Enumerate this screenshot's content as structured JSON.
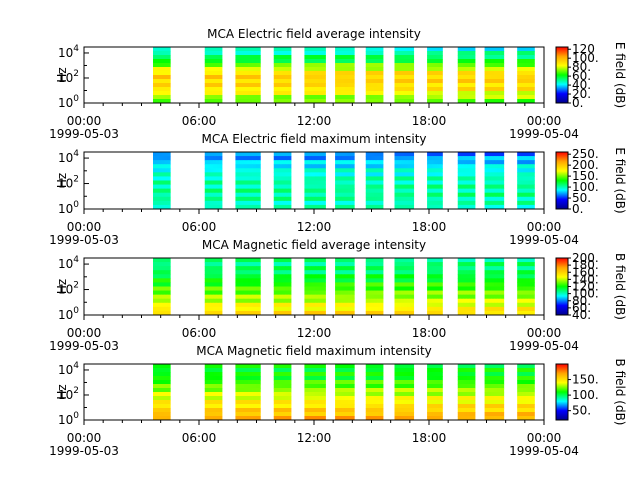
{
  "time_axis": {
    "range": [
      "1999-05-03T00:00",
      "1999-05-04T00:00"
    ],
    "ticks": [
      "00:00",
      "06:00",
      "12:00",
      "18:00",
      "00:00"
    ],
    "date_start": "1999-05-03",
    "date_end": "1999-05-04"
  },
  "colormap": [
    "#00008b",
    "#0000ff",
    "#00ffff",
    "#00ff00",
    "#ffff00",
    "#ffa500",
    "#ff0000"
  ],
  "chart_data": [
    {
      "type": "heatmap",
      "title": "MCA  Electric field average intensity",
      "ylabel": "Hz",
      "y_scale": "log",
      "ylim": [
        1,
        30000
      ],
      "y_ticks": [
        "10^0",
        "10^2",
        "10^4"
      ],
      "cbar_label": "E field (dB)",
      "cbar_range": [
        0,
        125
      ],
      "cbar_ticks": [
        "0.",
        "20.",
        "40.",
        "60.",
        "80.",
        "100.",
        "120"
      ],
      "data_intervals_hours": [
        [
          3.6,
          4.5
        ],
        [
          6.3,
          7.2
        ],
        [
          7.9,
          9.2
        ],
        [
          9.9,
          10.8
        ],
        [
          11.5,
          12.6
        ],
        [
          13.1,
          14.1
        ],
        [
          14.7,
          15.6
        ],
        [
          16.2,
          17.2
        ],
        [
          17.9,
          18.7
        ],
        [
          19.5,
          20.4
        ],
        [
          20.9,
          21.9
        ],
        [
          22.6,
          23.5
        ]
      ],
      "intensity_profile_db_by_freq": [
        65,
        90,
        95,
        60,
        40
      ]
    },
    {
      "type": "heatmap",
      "title": "MCA  Electric field maximum intensity",
      "ylabel": "Hz",
      "y_scale": "log",
      "ylim": [
        1,
        30000
      ],
      "y_ticks": [
        "10^0",
        "10^2",
        "10^4"
      ],
      "cbar_label": "E field (dB)",
      "cbar_range": [
        0,
        260
      ],
      "cbar_ticks": [
        "0.",
        "50.",
        "100.",
        "150.",
        "200.",
        "250."
      ],
      "data_intervals_hours": [
        [
          3.6,
          4.5
        ],
        [
          6.3,
          7.2
        ],
        [
          7.9,
          9.2
        ],
        [
          9.9,
          10.8
        ],
        [
          11.5,
          12.6
        ],
        [
          13.1,
          14.1
        ],
        [
          14.7,
          15.6
        ],
        [
          16.2,
          17.2
        ],
        [
          17.9,
          18.7
        ],
        [
          19.5,
          20.4
        ],
        [
          20.9,
          21.9
        ],
        [
          22.6,
          23.5
        ]
      ],
      "intensity_profile_db_by_freq": [
        95,
        105,
        100,
        85,
        60
      ]
    },
    {
      "type": "heatmap",
      "title": "MCA  Magnetic field average intensity",
      "ylabel": "Hz",
      "y_scale": "log",
      "ylim": [
        1,
        30000
      ],
      "y_ticks": [
        "10^0",
        "10^2",
        "10^4"
      ],
      "cbar_label": "B field (dB)",
      "cbar_range": [
        40,
        200
      ],
      "cbar_ticks": [
        "40.",
        "60.",
        "80.",
        "100.",
        "120.",
        "140.",
        "160.",
        "180.",
        "200."
      ],
      "data_intervals_hours": [
        [
          3.6,
          4.5
        ],
        [
          6.3,
          7.2
        ],
        [
          7.9,
          9.2
        ],
        [
          9.9,
          10.8
        ],
        [
          11.5,
          12.6
        ],
        [
          13.1,
          14.1
        ],
        [
          14.7,
          15.6
        ],
        [
          16.2,
          17.2
        ],
        [
          17.9,
          18.7
        ],
        [
          19.5,
          20.4
        ],
        [
          20.9,
          21.9
        ],
        [
          22.6,
          23.5
        ]
      ],
      "intensity_profile_db_by_freq": [
        160,
        140,
        125,
        110,
        105
      ]
    },
    {
      "type": "heatmap",
      "title": "MCA  Magnetic field maximum intensity",
      "ylabel": "Hz",
      "y_scale": "log",
      "ylim": [
        1,
        30000
      ],
      "y_ticks": [
        "10^0",
        "10^2",
        "10^4"
      ],
      "cbar_label": "B field (dB)",
      "cbar_range": [
        20,
        200
      ],
      "cbar_ticks": [
        "50.",
        "100.",
        "150."
      ],
      "data_intervals_hours": [
        [
          3.6,
          4.5
        ],
        [
          6.3,
          7.2
        ],
        [
          7.9,
          9.2
        ],
        [
          9.9,
          10.8
        ],
        [
          11.5,
          12.6
        ],
        [
          13.1,
          14.1
        ],
        [
          14.7,
          15.6
        ],
        [
          16.2,
          17.2
        ],
        [
          17.9,
          18.7
        ],
        [
          19.5,
          20.4
        ],
        [
          20.9,
          21.9
        ],
        [
          22.6,
          23.5
        ]
      ],
      "intensity_profile_db_by_freq": [
        170,
        150,
        130,
        110,
        105
      ]
    }
  ]
}
